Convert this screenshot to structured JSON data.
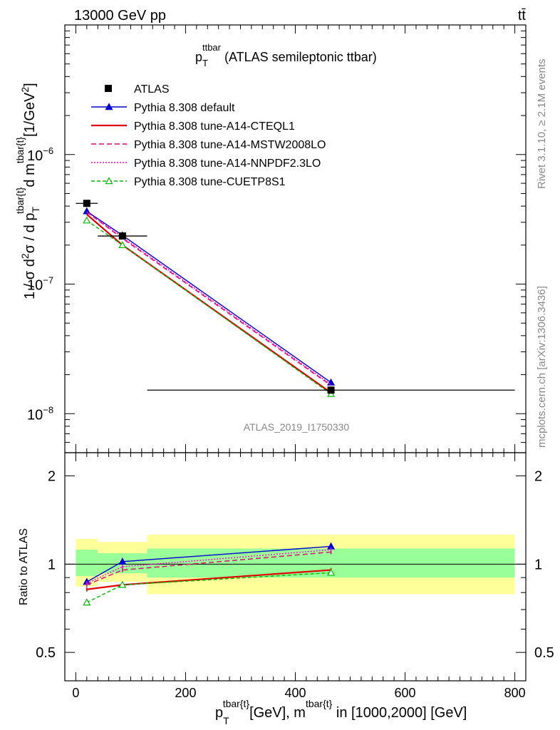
{
  "header": {
    "energy_label": "13000 GeV pp",
    "process_label": "tt̄"
  },
  "side_labels": {
    "rivet": "Rivet 3.1.10, ≥ 2.1M events",
    "site": "mcplots.cern.ch [arXiv:1306.3436]"
  },
  "title": {
    "main": "p",
    "sub": "T",
    "sup": "ttbar",
    "rest": " (ATLAS semileptonic ttbar)"
  },
  "analysis_tag": "ATLAS_2019_I1750330",
  "axes": {
    "top_ylabel": {
      "p1": "1 / σ d",
      "s1": "2",
      "p2": "σ / d p",
      "sub2": "T",
      "sup2": "tbar{t}",
      "p3": "d m",
      "sup3": "tbar{t}",
      "p4": "[1/GeV",
      "s4": "2",
      "p5": "]"
    },
    "bottom_ylabel": "Ratio to ATLAS",
    "xlabel": {
      "p1": "p",
      "sub1": "T",
      "sup1": "tbar{t}",
      "p2": "[GeV], m",
      "sup2": "tbar{t}",
      "p3": " in [1000,2000] [GeV]"
    },
    "top_ticks": [
      {
        "base": "10",
        "exp": "−6",
        "value": 1e-06
      },
      {
        "base": "10",
        "exp": "−7",
        "value": 1e-07
      },
      {
        "base": "10",
        "exp": "−8",
        "value": 1e-08
      }
    ],
    "ratio_ticks": [
      {
        "label": "2",
        "value": 2
      },
      {
        "label": "1",
        "value": 1
      },
      {
        "label": "0.5",
        "value": 0.5
      }
    ],
    "x_ticks": [
      {
        "label": "0",
        "value": 0
      },
      {
        "label": "200",
        "value": 200
      },
      {
        "label": "400",
        "value": 400
      },
      {
        "label": "600",
        "value": 600
      },
      {
        "label": "800",
        "value": 800
      }
    ]
  },
  "chart_data": {
    "type": "line",
    "title": "p_T^ttbar (ATLAS semileptonic ttbar)",
    "xlabel": "p_T^tbar{t} [GeV], m^tbar{t} in [1000,2000] [GeV]",
    "ylabel": "1 / σ d²σ / d p_T^tbar{t} d m^tbar{t} [1/GeV²]",
    "ratio_ylabel": "Ratio to ATLAS",
    "xlim": [
      -20,
      820
    ],
    "ylim": [
      5e-09,
      1e-05
    ],
    "yscale": "log",
    "ratio_ylim": [
      0.4,
      2.4
    ],
    "ratio_yscale": "log",
    "legend_position": "top-left",
    "data": {
      "name": "ATLAS",
      "x": [
        20,
        85,
        465
      ],
      "xerr_low": [
        20,
        45,
        335
      ],
      "xerr_high": [
        20,
        45,
        335
      ],
      "y": [
        4.2e-07,
        2.35e-07,
        1.52e-08
      ]
    },
    "bands": {
      "inner": [
        [
          0,
          40,
          0.91,
          1.12
        ],
        [
          40,
          130,
          0.93,
          1.09
        ],
        [
          130,
          800,
          0.9,
          1.13
        ]
      ],
      "outer": [
        [
          0,
          40,
          0.84,
          1.22
        ],
        [
          40,
          130,
          0.87,
          1.19
        ],
        [
          130,
          800,
          0.79,
          1.26
        ]
      ]
    },
    "series": [
      {
        "name": "Pythia 8.308 default",
        "color": "#0000cc",
        "dash": "",
        "marker": "triangle-filled",
        "x": [
          20,
          85,
          465
        ],
        "y": [
          3.65e-07,
          2.38e-07,
          1.74e-08
        ],
        "ratio": [
          0.87,
          1.02,
          1.15
        ]
      },
      {
        "name": "Pythia 8.308 tune-A14-CTEQL1",
        "color": "#e00000",
        "dash": "",
        "marker": "none",
        "x": [
          20,
          85,
          465
        ],
        "y": [
          3.45e-07,
          2e-07,
          1.45e-08
        ],
        "ratio": [
          0.82,
          0.85,
          0.955
        ]
      },
      {
        "name": "Pythia 8.308 tune-A14-MSTW2008LO",
        "color": "#e0006f",
        "dash": "7,4",
        "marker": "none",
        "x": [
          20,
          85,
          465
        ],
        "y": [
          3.6e-07,
          2.25e-07,
          1.65e-08
        ],
        "ratio": [
          0.85,
          0.955,
          1.1
        ]
      },
      {
        "name": "Pythia 8.308 tune-A14-NNPDF2.3LO",
        "color": "#ff00cc",
        "dash": "2,2",
        "marker": "none",
        "x": [
          20,
          85,
          465
        ],
        "y": [
          3.62e-07,
          2.3e-07,
          1.68e-08
        ],
        "ratio": [
          0.86,
          0.98,
          1.12
        ]
      },
      {
        "name": "Pythia 8.308 tune-CUETP8S1",
        "color": "#00bb00",
        "dash": "5,3",
        "marker": "triangle-open",
        "x": [
          20,
          85,
          465
        ],
        "y": [
          3.1e-07,
          2e-07,
          1.42e-08
        ],
        "ratio": [
          0.74,
          0.85,
          0.935
        ]
      }
    ]
  }
}
